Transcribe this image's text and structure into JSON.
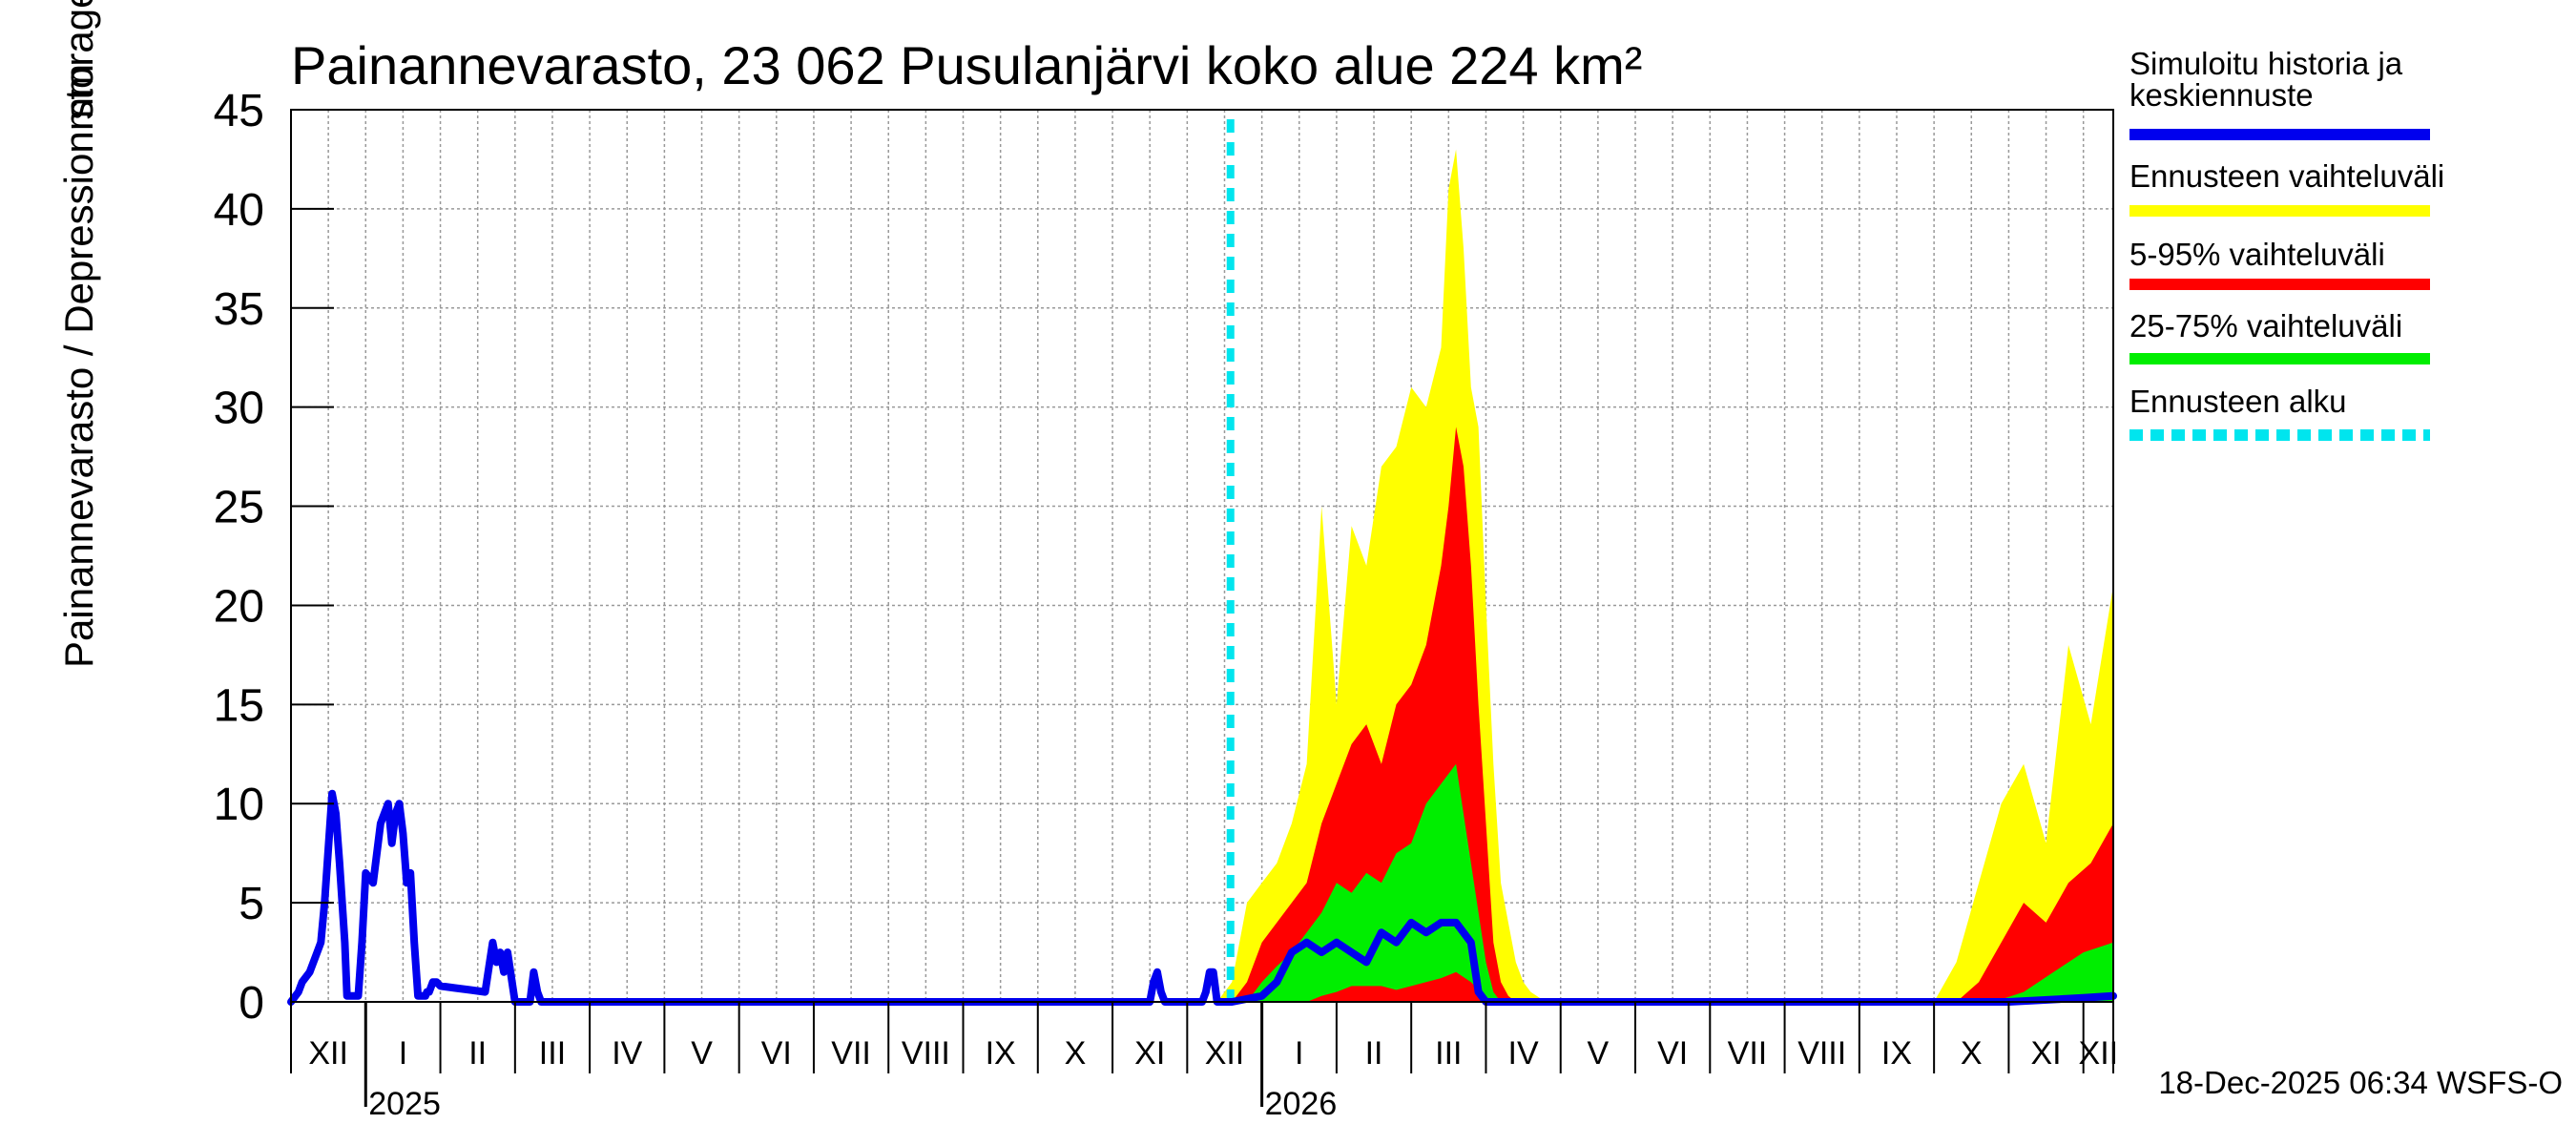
{
  "chart_data": {
    "type": "area",
    "title": "Painannevarasto, 23 062 Pusulanjärvi koko alue 224 km²",
    "ylabel": "Painannevarasto / Depression storage",
    "yunit": "mm",
    "ylim": [
      0,
      45
    ],
    "yticks": [
      0,
      5,
      10,
      15,
      20,
      25,
      30,
      35,
      40,
      45
    ],
    "xlim": [
      0,
      24.4
    ],
    "months": [
      {
        "label": "XII",
        "start": 0.0
      },
      {
        "label": "I",
        "start": 1.0
      },
      {
        "label": "II",
        "start": 2.0
      },
      {
        "label": "III",
        "start": 3.0
      },
      {
        "label": "IV",
        "start": 4.0
      },
      {
        "label": "V",
        "start": 5.0
      },
      {
        "label": "VI",
        "start": 6.0
      },
      {
        "label": "VII",
        "start": 7.0
      },
      {
        "label": "VIII",
        "start": 8.0
      },
      {
        "label": "IX",
        "start": 9.0
      },
      {
        "label": "X",
        "start": 10.0
      },
      {
        "label": "XI",
        "start": 11.0
      },
      {
        "label": "XII",
        "start": 12.0
      },
      {
        "label": "I",
        "start": 13.0
      },
      {
        "label": "II",
        "start": 14.0
      },
      {
        "label": "III",
        "start": 15.0
      },
      {
        "label": "IV",
        "start": 16.0
      },
      {
        "label": "V",
        "start": 17.0
      },
      {
        "label": "VI",
        "start": 18.0
      },
      {
        "label": "VII",
        "start": 19.0
      },
      {
        "label": "VIII",
        "start": 20.0
      },
      {
        "label": "IX",
        "start": 21.0
      },
      {
        "label": "X",
        "start": 22.0
      },
      {
        "label": "XI",
        "start": 23.0
      },
      {
        "label": "XII",
        "start": 24.0
      }
    ],
    "years": [
      {
        "label": "2025",
        "at": 1.0
      },
      {
        "label": "2026",
        "at": 13.0
      }
    ],
    "forecast_start": 12.58,
    "series": [
      {
        "name": "Ennusteen vaihteluväli",
        "kind": "band",
        "color": "#ffff00",
        "x": [
          12.4,
          12.6,
          12.8,
          13.0,
          13.2,
          13.4,
          13.6,
          13.8,
          14.0,
          14.2,
          14.4,
          14.6,
          14.8,
          15.0,
          15.2,
          15.4,
          15.5,
          15.6,
          15.7,
          15.8,
          15.9,
          16.0,
          16.1,
          16.2,
          16.3,
          16.4,
          16.5,
          16.6,
          16.8,
          22.0,
          22.3,
          22.6,
          22.9,
          23.2,
          23.5,
          23.8,
          24.1,
          24.4
        ],
        "lo": [
          0,
          0,
          0,
          0,
          0,
          0,
          0,
          0,
          0,
          0,
          0,
          0,
          0,
          0,
          0,
          0,
          0,
          0,
          0,
          0,
          0,
          0,
          0,
          0,
          0,
          0,
          0,
          0,
          0,
          0,
          0,
          0,
          0,
          0,
          0,
          0,
          0,
          0
        ],
        "hi": [
          0,
          1,
          5,
          6,
          7,
          9,
          12,
          25,
          15,
          24,
          22,
          27,
          28,
          31,
          30,
          33,
          41,
          43,
          38,
          31,
          29,
          20,
          12,
          6,
          4,
          2,
          1,
          0.5,
          0,
          0,
          2,
          6,
          10,
          12,
          8,
          18,
          14,
          21
        ]
      },
      {
        "name": "5-95% vaihteluväli",
        "kind": "band",
        "color": "#ff0000",
        "x": [
          12.6,
          12.8,
          13.0,
          13.2,
          13.4,
          13.6,
          13.8,
          14.0,
          14.2,
          14.4,
          14.6,
          14.8,
          15.0,
          15.2,
          15.4,
          15.5,
          15.6,
          15.7,
          15.8,
          15.9,
          16.0,
          16.1,
          16.2,
          16.3,
          16.4,
          22.3,
          22.6,
          22.9,
          23.2,
          23.5,
          23.8,
          24.1,
          24.4
        ],
        "lo": [
          0,
          0,
          0,
          0,
          0,
          0,
          0,
          0,
          0,
          0,
          0,
          0,
          0,
          0,
          0,
          0,
          0,
          0,
          0,
          0,
          0,
          0,
          0,
          0,
          0,
          0,
          0,
          0,
          0,
          0,
          0,
          0,
          0
        ],
        "hi": [
          0,
          1,
          3,
          4,
          5,
          6,
          9,
          11,
          13,
          14,
          12,
          15,
          16,
          18,
          22,
          25,
          29,
          27,
          22,
          15,
          9,
          3,
          1,
          0.3,
          0,
          0,
          1,
          3,
          5,
          4,
          6,
          7,
          9
        ]
      },
      {
        "name": "25-75% vaihteluväli",
        "kind": "band",
        "color": "#00ee00",
        "x": [
          12.8,
          13.0,
          13.2,
          13.4,
          13.6,
          13.8,
          14.0,
          14.2,
          14.4,
          14.6,
          14.8,
          15.0,
          15.2,
          15.4,
          15.6,
          15.8,
          16.0,
          16.1,
          16.2,
          22.8,
          23.2,
          23.6,
          24.0,
          24.4
        ],
        "lo": [
          0,
          0,
          0,
          0,
          0,
          0.3,
          0.5,
          0.8,
          0.8,
          0.8,
          0.6,
          0.8,
          1.0,
          1.2,
          1.5,
          1.0,
          0.2,
          0,
          0,
          0,
          0,
          0,
          0,
          0
        ],
        "hi": [
          0,
          1,
          1.8,
          2.5,
          3.5,
          4.5,
          6,
          5.5,
          6.5,
          6,
          7.5,
          8,
          10,
          11,
          12,
          7,
          2,
          0.5,
          0,
          0,
          0.5,
          1.5,
          2.5,
          3
        ]
      },
      {
        "name": "Simuloitu historia ja keskiennuste",
        "kind": "line",
        "color": "#0000ee",
        "x": [
          0.0,
          0.1,
          0.15,
          0.25,
          0.35,
          0.4,
          0.45,
          0.55,
          0.6,
          0.65,
          0.72,
          0.75,
          0.8,
          0.85,
          0.9,
          0.95,
          1.0,
          1.1,
          1.2,
          1.25,
          1.3,
          1.35,
          1.4,
          1.45,
          1.5,
          1.55,
          1.6,
          1.65,
          1.7,
          1.75,
          1.8,
          1.82,
          1.85,
          1.9,
          1.95,
          2.0,
          2.2,
          2.4,
          2.6,
          2.7,
          2.75,
          2.8,
          2.85,
          2.9,
          3.0,
          3.1,
          3.2,
          3.25,
          3.3,
          3.35,
          3.4,
          3.5,
          11.5,
          11.55,
          11.6,
          11.65,
          11.7,
          11.8,
          11.9,
          12.0,
          12.2,
          12.25,
          12.3,
          12.35,
          12.4,
          12.6,
          13.0,
          13.2,
          13.4,
          13.6,
          13.8,
          14.0,
          14.2,
          14.4,
          14.6,
          14.8,
          15.0,
          15.2,
          15.4,
          15.6,
          15.8,
          15.9,
          16.0,
          16.5,
          22.0,
          23.0,
          24.0,
          24.4
        ],
        "y": [
          0,
          0.5,
          1.0,
          1.5,
          2.5,
          3.0,
          5.0,
          10.5,
          9.5,
          7.0,
          3.0,
          0.3,
          0.3,
          0.3,
          0.3,
          3.0,
          6.5,
          6.0,
          9.0,
          9.5,
          10.0,
          8.0,
          9.5,
          10.0,
          8.5,
          6.0,
          6.5,
          3.0,
          0.3,
          0.3,
          0.3,
          0.5,
          0.5,
          1.0,
          1.0,
          0.8,
          0.7,
          0.6,
          0.5,
          3.0,
          2.0,
          2.5,
          1.5,
          2.5,
          0,
          0,
          0,
          1.5,
          0.5,
          0,
          0,
          0,
          0,
          1.0,
          1.5,
          0.5,
          0,
          0,
          0,
          0,
          0,
          0.5,
          1.5,
          1.5,
          0,
          0,
          0.3,
          1.0,
          2.5,
          3.0,
          2.5,
          3.0,
          2.5,
          2.0,
          3.5,
          3.0,
          4.0,
          3.5,
          4.0,
          4.0,
          3.0,
          0.5,
          0,
          0,
          0,
          0,
          0.2,
          0.3
        ]
      }
    ]
  },
  "legend": {
    "items": [
      {
        "label_lines": [
          "Simuloitu historia ja",
          "keskiennuste"
        ],
        "color": "#0000ee",
        "style": "solid"
      },
      {
        "label_lines": [
          "Ennusteen vaihteluväli"
        ],
        "color": "#ffff00",
        "style": "solid"
      },
      {
        "label_lines": [
          "5-95% vaihteluväli"
        ],
        "color": "#ff0000",
        "style": "solid"
      },
      {
        "label_lines": [
          "25-75% vaihteluväli"
        ],
        "color": "#00ee00",
        "style": "solid"
      },
      {
        "label_lines": [
          "Ennusteen alku"
        ],
        "color": "#00e5ee",
        "style": "dashed"
      }
    ]
  },
  "colors": {
    "forecast_start_line": "#00e5ee",
    "grid": "#999999",
    "axis": "#000000"
  },
  "footer": {
    "timestamp": "18-Dec-2025 06:34 WSFS-O"
  }
}
